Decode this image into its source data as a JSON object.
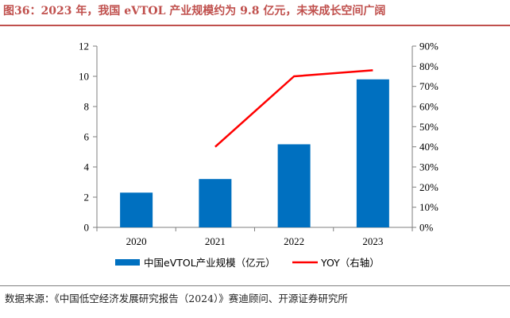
{
  "title": "图36：2023 年，我国 eVTOL 产业规模约为 9.8 亿元，未来成长空间广阔",
  "source": "数据来源：《中国低空经济发展研究报告（2024）》赛迪顾问、开源证券研究所",
  "colors": {
    "title": "#c0504d",
    "bar": "#0070c0",
    "line": "#ff0000",
    "axis": "#7f7f7f"
  },
  "chart_data": {
    "type": "bar",
    "categories": [
      "2020",
      "2021",
      "2022",
      "2023"
    ],
    "series": [
      {
        "name": "中国eVTOL产业规模（亿元）",
        "type": "bar",
        "axis": "left",
        "values": [
          2.3,
          3.2,
          5.5,
          9.8
        ]
      },
      {
        "name": "YOY（右轴）",
        "type": "line",
        "axis": "right",
        "values": [
          null,
          40,
          75,
          78
        ]
      }
    ],
    "y_left": {
      "min": 0,
      "max": 12,
      "step": 2,
      "ticks": [
        "0",
        "2",
        "4",
        "6",
        "8",
        "10",
        "12"
      ]
    },
    "y_right": {
      "min": 0,
      "max": 90,
      "step": 10,
      "ticks": [
        "0%",
        "10%",
        "20%",
        "30%",
        "40%",
        "50%",
        "60%",
        "70%",
        "80%",
        "90%"
      ]
    },
    "grid": false,
    "legend_position": "bottom"
  }
}
